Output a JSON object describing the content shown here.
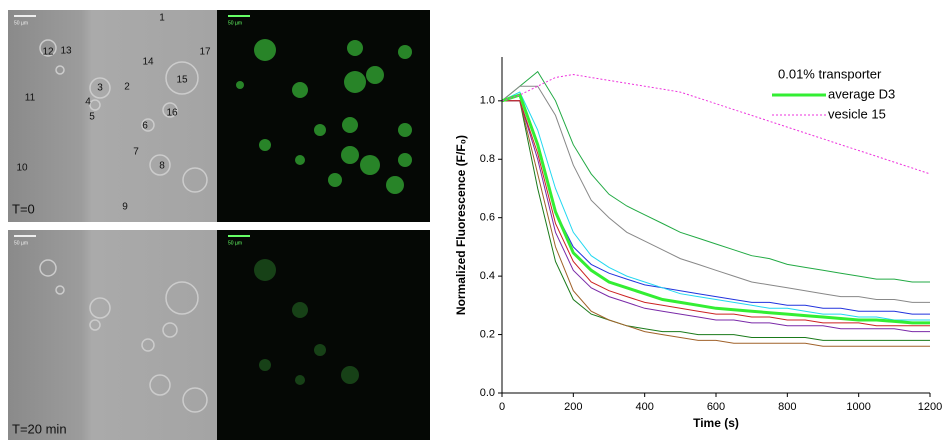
{
  "images": {
    "panels": [
      {
        "time_label": "T=0",
        "scale_bars": [
          "50 µm",
          "50 µm"
        ],
        "vesicle_labels": [
          "1",
          "2",
          "3",
          "4",
          "5",
          "6",
          "7",
          "8",
          "9",
          "10",
          "11",
          "12",
          "13",
          "14",
          "15",
          "16",
          "17"
        ]
      },
      {
        "time_label": "T=20 min",
        "scale_bars": [
          "50 µm",
          "50 µm"
        ]
      }
    ]
  },
  "chart_data": {
    "type": "line",
    "xlabel": "Time (s)",
    "ylabel": "Normalized Fluorescence (F/F₀)",
    "legend_title": "0.01% transporter",
    "legend": "upper right",
    "xlim": [
      0,
      1200
    ],
    "ylim": [
      0,
      1.15
    ],
    "xticks": [
      0,
      200,
      400,
      600,
      800,
      1000,
      1200
    ],
    "yticks": [
      {
        "value": 0,
        "label": "0.0"
      },
      0.2,
      0.4,
      0.6,
      0.8,
      {
        "value": 1,
        "label": "1.0"
      }
    ],
    "x": [
      0,
      50,
      100,
      150,
      200,
      250,
      300,
      350,
      400,
      450,
      500,
      550,
      600,
      650,
      700,
      750,
      800,
      850,
      900,
      950,
      1000,
      1050,
      1100,
      1150,
      1200
    ],
    "series": [
      {
        "color": "#22aa44",
        "values": [
          1.0,
          1.05,
          1.1,
          1.0,
          0.85,
          0.75,
          0.68,
          0.64,
          0.61,
          0.58,
          0.55,
          0.53,
          0.51,
          0.49,
          0.47,
          0.46,
          0.44,
          0.43,
          0.42,
          0.41,
          0.4,
          0.39,
          0.39,
          0.38,
          0.38
        ]
      },
      {
        "color": "#888888",
        "values": [
          1.0,
          1.05,
          1.05,
          0.95,
          0.78,
          0.66,
          0.6,
          0.55,
          0.52,
          0.49,
          0.46,
          0.44,
          0.42,
          0.4,
          0.38,
          0.37,
          0.36,
          0.35,
          0.34,
          0.33,
          0.33,
          0.32,
          0.32,
          0.31,
          0.31
        ]
      },
      {
        "color": "#1a7a1a",
        "values": [
          1.0,
          1.0,
          0.7,
          0.45,
          0.32,
          0.27,
          0.25,
          0.23,
          0.22,
          0.21,
          0.21,
          0.2,
          0.2,
          0.2,
          0.19,
          0.19,
          0.19,
          0.19,
          0.18,
          0.18,
          0.18,
          0.18,
          0.18,
          0.18,
          0.18
        ]
      },
      {
        "color": "#a0622a",
        "values": [
          1.0,
          1.0,
          0.75,
          0.5,
          0.35,
          0.28,
          0.25,
          0.23,
          0.21,
          0.2,
          0.19,
          0.18,
          0.18,
          0.17,
          0.17,
          0.17,
          0.17,
          0.17,
          0.16,
          0.16,
          0.16,
          0.16,
          0.16,
          0.16,
          0.16
        ]
      },
      {
        "color": "#2233dd",
        "values": [
          1.0,
          1.02,
          0.85,
          0.62,
          0.5,
          0.44,
          0.41,
          0.39,
          0.37,
          0.36,
          0.35,
          0.34,
          0.33,
          0.32,
          0.31,
          0.31,
          0.3,
          0.3,
          0.29,
          0.29,
          0.28,
          0.28,
          0.28,
          0.27,
          0.27
        ]
      },
      {
        "color": "#7a2aa8",
        "values": [
          1.0,
          1.0,
          0.8,
          0.55,
          0.42,
          0.36,
          0.33,
          0.31,
          0.29,
          0.28,
          0.27,
          0.26,
          0.25,
          0.25,
          0.24,
          0.24,
          0.23,
          0.23,
          0.23,
          0.22,
          0.22,
          0.22,
          0.22,
          0.21,
          0.21
        ]
      },
      {
        "color": "#22d8f0",
        "values": [
          1.0,
          1.03,
          0.9,
          0.7,
          0.55,
          0.47,
          0.43,
          0.4,
          0.38,
          0.36,
          0.34,
          0.33,
          0.32,
          0.31,
          0.3,
          0.29,
          0.29,
          0.28,
          0.27,
          0.27,
          0.26,
          0.26,
          0.25,
          0.25,
          0.25
        ]
      },
      {
        "color": "#cc2222",
        "values": [
          1.0,
          1.0,
          0.82,
          0.58,
          0.45,
          0.38,
          0.35,
          0.33,
          0.31,
          0.3,
          0.29,
          0.28,
          0.27,
          0.27,
          0.26,
          0.26,
          0.25,
          0.25,
          0.24,
          0.24,
          0.24,
          0.23,
          0.23,
          0.23,
          0.23
        ]
      },
      {
        "name": "average D3",
        "color": "#33ee33",
        "width": 3,
        "values": [
          1.0,
          1.02,
          0.85,
          0.62,
          0.48,
          0.42,
          0.38,
          0.36,
          0.34,
          0.32,
          0.31,
          0.3,
          0.29,
          0.285,
          0.28,
          0.275,
          0.27,
          0.265,
          0.26,
          0.255,
          0.25,
          0.25,
          0.245,
          0.24,
          0.24
        ]
      },
      {
        "name": "vesicle 15",
        "color": "#ee33dd",
        "dashed": true,
        "values": [
          1.0,
          1.02,
          1.05,
          1.08,
          1.09,
          1.08,
          1.07,
          1.06,
          1.05,
          1.04,
          1.03,
          1.01,
          0.99,
          0.97,
          0.95,
          0.93,
          0.91,
          0.89,
          0.87,
          0.85,
          0.83,
          0.81,
          0.79,
          0.77,
          0.75
        ]
      }
    ]
  }
}
